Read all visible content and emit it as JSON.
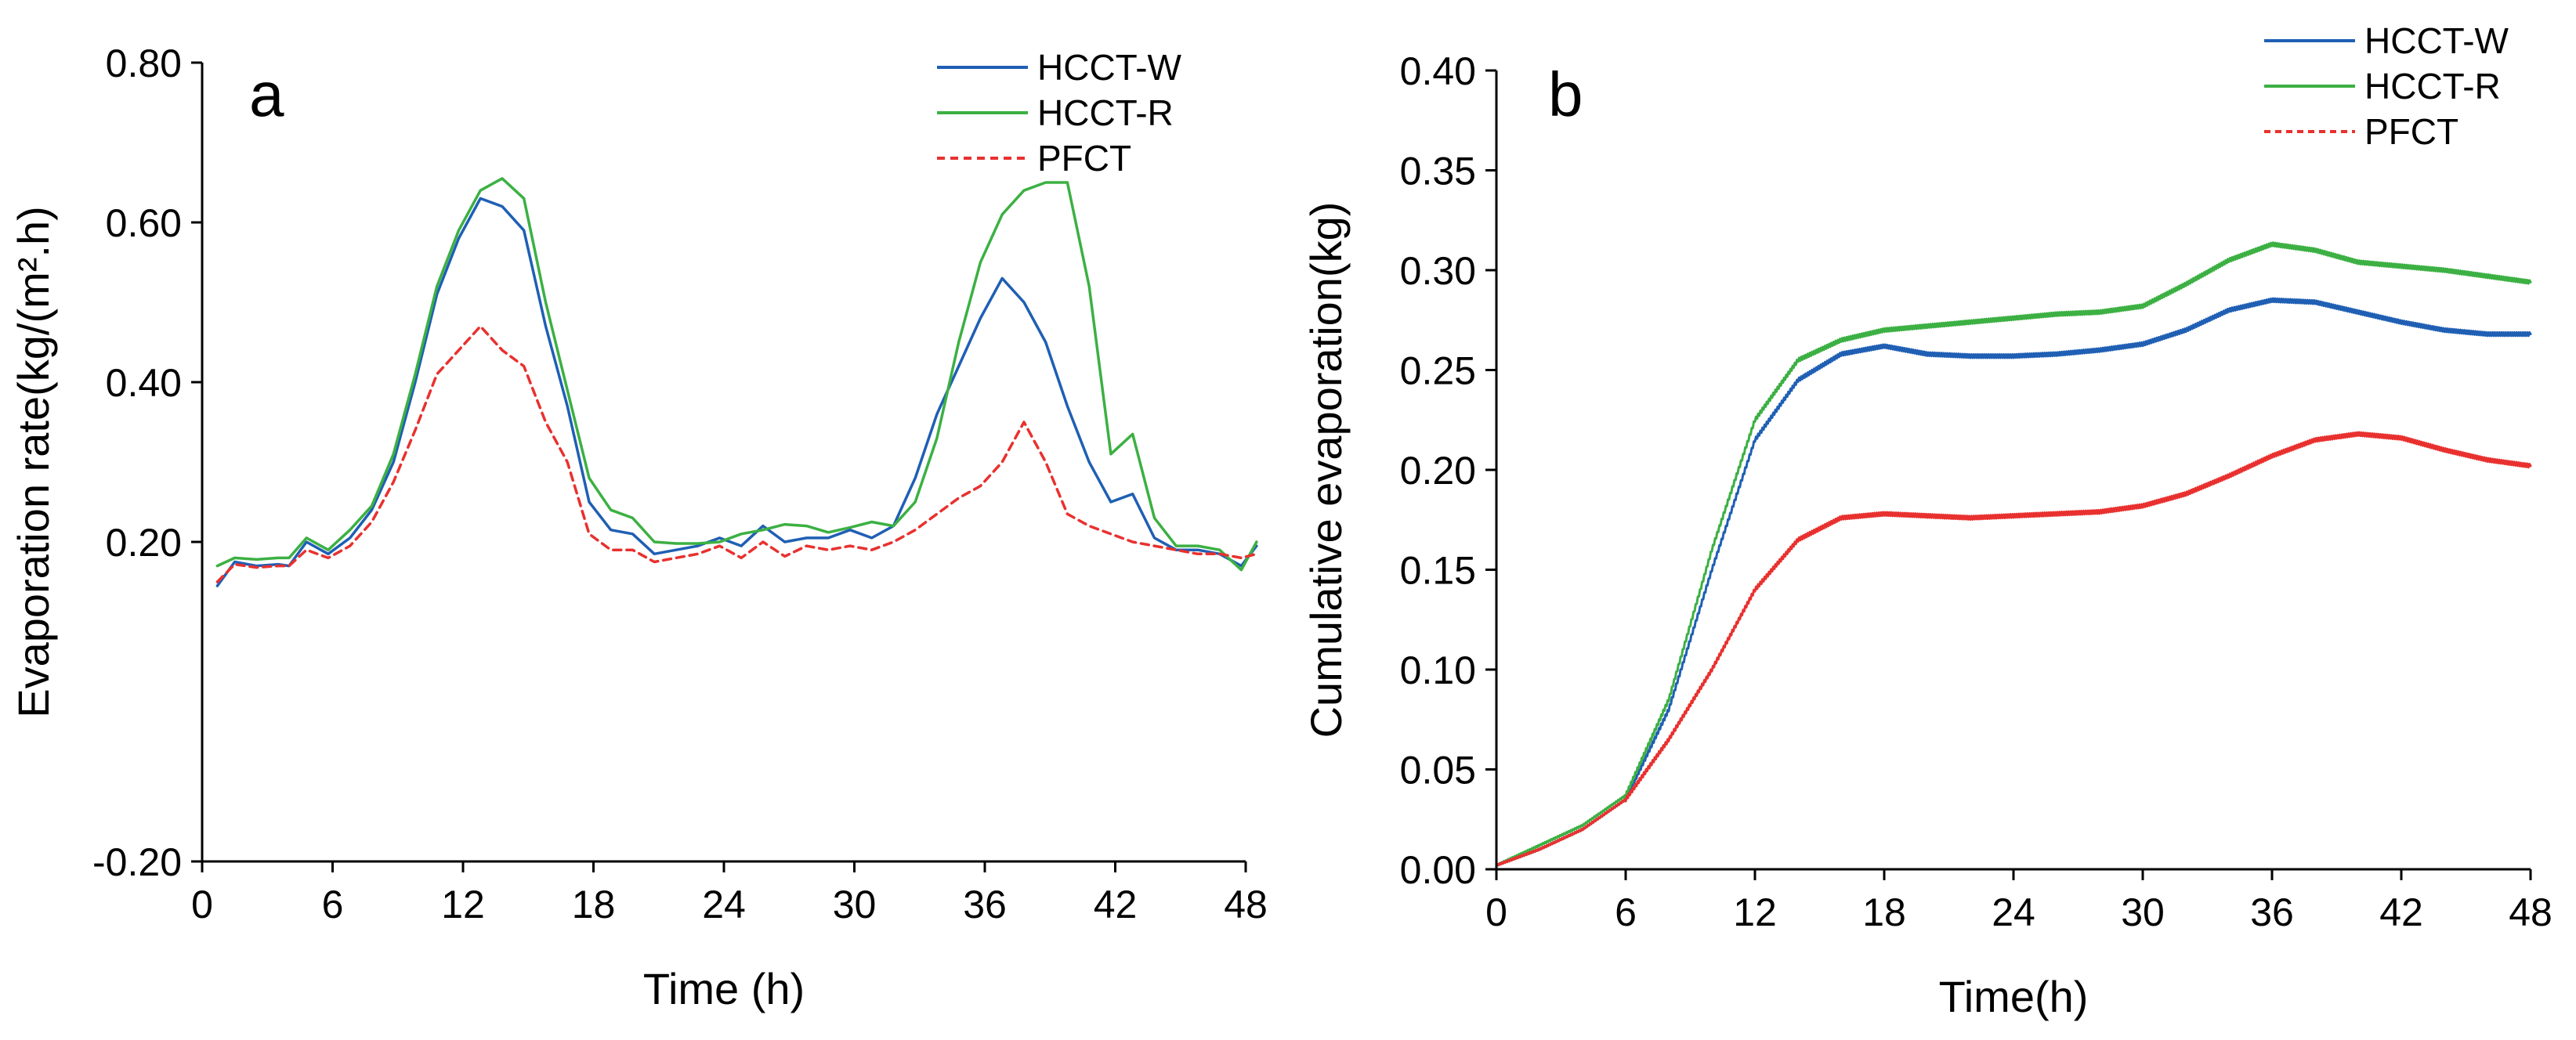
{
  "chart_data": [
    {
      "type": "line",
      "panel_letter": "a",
      "xlabel": "Time (h)",
      "ylabel": "Evaporation rate(kg/(m².h)",
      "xlim": [
        0,
        48
      ],
      "ylim": [
        -0.2,
        0.8
      ],
      "xticks": [
        0,
        6,
        12,
        18,
        24,
        30,
        36,
        42,
        48
      ],
      "xtick_labels": [
        "0",
        "6",
        "12",
        "18",
        "24",
        "30",
        "36",
        "42",
        "48"
      ],
      "yticks": [
        -0.2,
        0.2,
        0.4,
        0.6,
        0.8
      ],
      "ytick_labels": [
        "-0.20",
        "0.20",
        "0.40",
        "0.60",
        "0.80"
      ],
      "legend_position": "top-right",
      "grid": false,
      "series": [
        {
          "name": "HCCT-W",
          "color": "#1f5fb4",
          "dash": "solid",
          "x": [
            0.7,
            1.5,
            2.5,
            3.5,
            4.0,
            4.8,
            5.8,
            6.8,
            7.8,
            8.8,
            9.8,
            10.8,
            11.8,
            12.8,
            13.8,
            14.8,
            15.8,
            16.8,
            17.8,
            18.8,
            19.8,
            20.8,
            21.8,
            22.8,
            23.8,
            24.8,
            25.8,
            26.8,
            27.8,
            28.8,
            29.8,
            30.8,
            31.8,
            32.8,
            33.8,
            34.8,
            35.8,
            36.8,
            37.8,
            38.8,
            39.8,
            40.8,
            41.8,
            42.8,
            43.8,
            44.8,
            45.8,
            46.8,
            47.8,
            48.5
          ],
          "y": [
            0.145,
            0.175,
            0.17,
            0.172,
            0.17,
            0.2,
            0.185,
            0.205,
            0.24,
            0.3,
            0.4,
            0.51,
            0.58,
            0.63,
            0.62,
            0.59,
            0.47,
            0.37,
            0.25,
            0.215,
            0.21,
            0.185,
            0.19,
            0.195,
            0.205,
            0.195,
            0.22,
            0.2,
            0.205,
            0.205,
            0.215,
            0.205,
            0.22,
            0.28,
            0.36,
            0.42,
            0.48,
            0.53,
            0.5,
            0.45,
            0.37,
            0.3,
            0.25,
            0.26,
            0.205,
            0.19,
            0.19,
            0.185,
            0.17,
            0.195
          ]
        },
        {
          "name": "HCCT-R",
          "color": "#3cb043",
          "dash": "solid",
          "x": [
            0.7,
            1.5,
            2.5,
            3.5,
            4.0,
            4.8,
            5.8,
            6.8,
            7.8,
            8.8,
            9.8,
            10.8,
            11.8,
            12.8,
            13.8,
            14.8,
            15.8,
            16.8,
            17.8,
            18.8,
            19.8,
            20.8,
            21.8,
            22.8,
            23.8,
            24.8,
            25.8,
            26.8,
            27.8,
            28.8,
            29.8,
            30.8,
            31.8,
            32.8,
            33.8,
            34.8,
            35.8,
            36.8,
            37.8,
            38.8,
            39.8,
            40.8,
            41.8,
            42.8,
            43.8,
            44.8,
            45.8,
            46.8,
            47.8,
            48.5
          ],
          "y": [
            0.17,
            0.18,
            0.178,
            0.18,
            0.18,
            0.205,
            0.19,
            0.215,
            0.245,
            0.31,
            0.41,
            0.52,
            0.59,
            0.64,
            0.655,
            0.63,
            0.5,
            0.39,
            0.28,
            0.24,
            0.23,
            0.2,
            0.198,
            0.198,
            0.2,
            0.21,
            0.215,
            0.222,
            0.22,
            0.212,
            0.218,
            0.225,
            0.22,
            0.25,
            0.33,
            0.45,
            0.55,
            0.61,
            0.64,
            0.65,
            0.65,
            0.52,
            0.31,
            0.335,
            0.23,
            0.195,
            0.195,
            0.19,
            0.165,
            0.2
          ]
        },
        {
          "name": "PFCT",
          "color": "#e8312f",
          "dash": "dashed",
          "x": [
            0.7,
            1.5,
            2.5,
            3.5,
            4.0,
            4.8,
            5.8,
            6.8,
            7.8,
            8.8,
            9.8,
            10.8,
            11.8,
            12.8,
            13.8,
            14.8,
            15.8,
            16.8,
            17.8,
            18.8,
            19.8,
            20.8,
            21.8,
            22.8,
            23.8,
            24.8,
            25.8,
            26.8,
            27.8,
            28.8,
            29.8,
            30.8,
            31.8,
            32.8,
            33.8,
            34.8,
            35.8,
            36.8,
            37.8,
            38.8,
            39.8,
            40.8,
            41.8,
            42.8,
            43.8,
            44.8,
            45.8,
            46.8,
            47.8,
            48.5
          ],
          "y": [
            0.15,
            0.172,
            0.168,
            0.17,
            0.17,
            0.19,
            0.18,
            0.195,
            0.225,
            0.275,
            0.34,
            0.41,
            0.44,
            0.47,
            0.44,
            0.42,
            0.35,
            0.3,
            0.21,
            0.19,
            0.19,
            0.175,
            0.18,
            0.185,
            0.195,
            0.18,
            0.2,
            0.182,
            0.195,
            0.19,
            0.195,
            0.19,
            0.2,
            0.215,
            0.235,
            0.255,
            0.27,
            0.3,
            0.35,
            0.3,
            0.235,
            0.22,
            0.21,
            0.2,
            0.195,
            0.19,
            0.185,
            0.185,
            0.18,
            0.185
          ]
        }
      ]
    },
    {
      "type": "line",
      "panel_letter": "b",
      "xlabel": "Time(h)",
      "ylabel": "Cumulative evaporation(kg)",
      "xlim": [
        0,
        48
      ],
      "ylim": [
        0,
        0.4
      ],
      "xticks": [
        0,
        6,
        12,
        18,
        24,
        30,
        36,
        42,
        48
      ],
      "xtick_labels": [
        "0",
        "6",
        "12",
        "18",
        "24",
        "30",
        "36",
        "42",
        "48"
      ],
      "yticks": [
        0,
        0.05,
        0.1,
        0.15,
        0.2,
        0.25,
        0.3,
        0.35,
        0.4
      ],
      "ytick_labels": [
        "0.00",
        "0.05",
        "0.10",
        "0.15",
        "0.20",
        "0.25",
        "0.30",
        "0.35",
        "0.40"
      ],
      "legend_position": "top-right",
      "grid": false,
      "series": [
        {
          "name": "HCCT-W",
          "color": "#1f5fb4",
          "dash": "solid",
          "x": [
            0,
            2,
            4,
            6,
            8,
            10,
            12,
            14,
            16,
            18,
            20,
            22,
            24,
            26,
            28,
            30,
            32,
            34,
            36,
            38,
            40,
            42,
            44,
            46,
            48
          ],
          "y": [
            0.002,
            0.01,
            0.02,
            0.035,
            0.08,
            0.15,
            0.215,
            0.245,
            0.258,
            0.262,
            0.258,
            0.257,
            0.257,
            0.258,
            0.26,
            0.263,
            0.27,
            0.28,
            0.285,
            0.284,
            0.279,
            0.274,
            0.27,
            0.268,
            0.268
          ]
        },
        {
          "name": "HCCT-R",
          "color": "#3cb043",
          "dash": "solid",
          "x": [
            0,
            2,
            4,
            6,
            8,
            10,
            12,
            14,
            16,
            18,
            20,
            22,
            24,
            26,
            28,
            30,
            32,
            34,
            36,
            38,
            40,
            42,
            44,
            46,
            48
          ],
          "y": [
            0.002,
            0.012,
            0.022,
            0.037,
            0.085,
            0.16,
            0.225,
            0.255,
            0.265,
            0.27,
            0.272,
            0.274,
            0.276,
            0.278,
            0.279,
            0.282,
            0.293,
            0.305,
            0.313,
            0.31,
            0.304,
            0.302,
            0.3,
            0.297,
            0.294
          ]
        },
        {
          "name": "PFCT",
          "color": "#e8312f",
          "dash": "solid",
          "x": [
            0,
            2,
            4,
            6,
            8,
            10,
            12,
            14,
            16,
            18,
            20,
            22,
            24,
            26,
            28,
            30,
            32,
            34,
            36,
            38,
            40,
            42,
            44,
            46,
            48
          ],
          "y": [
            0.002,
            0.01,
            0.02,
            0.035,
            0.065,
            0.1,
            0.14,
            0.165,
            0.176,
            0.178,
            0.177,
            0.176,
            0.177,
            0.178,
            0.179,
            0.182,
            0.188,
            0.197,
            0.207,
            0.215,
            0.218,
            0.216,
            0.21,
            0.205,
            0.202
          ]
        }
      ]
    }
  ]
}
